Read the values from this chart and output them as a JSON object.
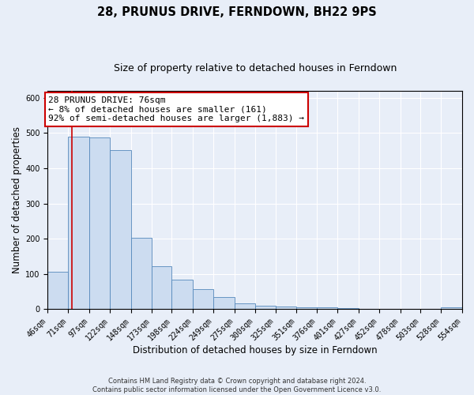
{
  "title": "28, PRUNUS DRIVE, FERNDOWN, BH22 9PS",
  "subtitle": "Size of property relative to detached houses in Ferndown",
  "xlabel": "Distribution of detached houses by size in Ferndown",
  "ylabel": "Number of detached properties",
  "bin_edges": [
    46,
    71,
    97,
    122,
    148,
    173,
    198,
    224,
    249,
    275,
    300,
    325,
    351,
    376,
    401,
    427,
    452,
    478,
    503,
    528,
    554
  ],
  "bin_heights": [
    105,
    490,
    488,
    452,
    202,
    121,
    83,
    57,
    35,
    17,
    10,
    8,
    5,
    5,
    3,
    0,
    0,
    0,
    0,
    5
  ],
  "bar_facecolor": "#ccdcf0",
  "bar_edgecolor": "#5588bb",
  "property_line_x": 76,
  "property_line_color": "#cc0000",
  "annotation_title": "28 PRUNUS DRIVE: 76sqm",
  "annotation_line1": "← 8% of detached houses are smaller (161)",
  "annotation_line2": "92% of semi-detached houses are larger (1,883) →",
  "annotation_box_facecolor": "#ffffff",
  "annotation_box_edgecolor": "#cc0000",
  "ylim": [
    0,
    620
  ],
  "tick_labels": [
    "46sqm",
    "71sqm",
    "97sqm",
    "122sqm",
    "148sqm",
    "173sqm",
    "198sqm",
    "224sqm",
    "249sqm",
    "275sqm",
    "300sqm",
    "325sqm",
    "351sqm",
    "376sqm",
    "401sqm",
    "427sqm",
    "452sqm",
    "478sqm",
    "503sqm",
    "528sqm",
    "554sqm"
  ],
  "footer_line1": "Contains HM Land Registry data © Crown copyright and database right 2024.",
  "footer_line2": "Contains public sector information licensed under the Open Government Licence v3.0.",
  "background_color": "#e8eef8",
  "grid_color": "#ffffff",
  "title_fontsize": 10.5,
  "subtitle_fontsize": 9,
  "axis_label_fontsize": 8.5,
  "tick_fontsize": 7,
  "annotation_fontsize": 8,
  "footer_fontsize": 6
}
